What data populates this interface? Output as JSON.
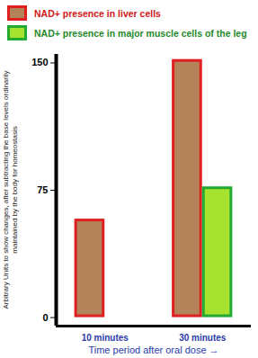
{
  "chart_data": {
    "type": "bar",
    "categories": [
      "10 minutes",
      "30 minutes"
    ],
    "series": [
      {
        "name": "NAD+ presence in liver cells",
        "color": "#b5835a",
        "values": [
          58,
          152
        ]
      },
      {
        "name": "NAD+ presence in major muscle cells of the leg",
        "color": "#a6e22e",
        "values": [
          1,
          77
        ]
      }
    ],
    "xlabel": "Time period after oral dose",
    "ylabel": "Arbitrary Units to show changes, after subtracting the base levels ordinarily maintained by the body for homeostasis",
    "ylim": [
      -5,
      155
    ],
    "yticks": [
      0,
      75,
      150
    ],
    "grid": false,
    "legend": "top-left"
  }
}
